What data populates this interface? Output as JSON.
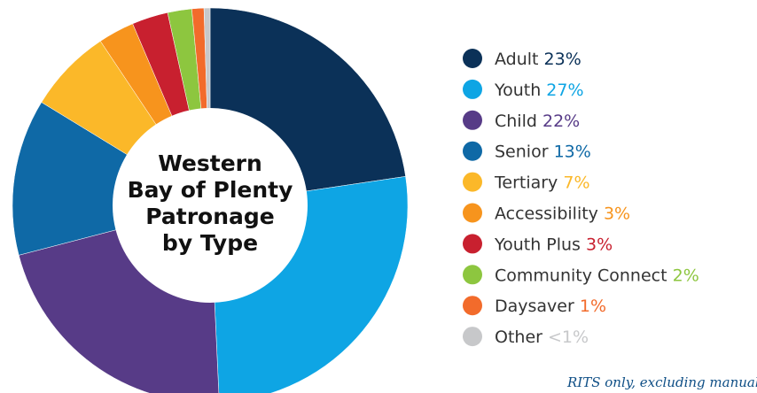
{
  "chart_data": {
    "type": "pie",
    "donut": true,
    "title": [
      "Western",
      "Bay of Plenty",
      "Patronage",
      "by Type"
    ],
    "categories": [
      "Adult",
      "Youth",
      "Child",
      "Senior",
      "Tertiary",
      "Accessibility",
      "Youth Plus",
      "Community Connect",
      "Daysaver",
      "Other"
    ],
    "values": [
      23,
      27,
      22,
      13,
      7,
      3,
      3,
      2,
      1,
      0.5
    ],
    "value_labels": [
      "23%",
      "27%",
      "22%",
      "13%",
      "7%",
      "3%",
      "3%",
      "2%",
      "1%",
      "<1%"
    ],
    "colors": [
      "#0b3158",
      "#0ea5e4",
      "#573b87",
      "#0f69a6",
      "#fbb829",
      "#f7941d",
      "#c8202f",
      "#8dc63f",
      "#f26b2b",
      "#c7c8ca"
    ],
    "footnote": "RITS only, excluding manual data r"
  }
}
